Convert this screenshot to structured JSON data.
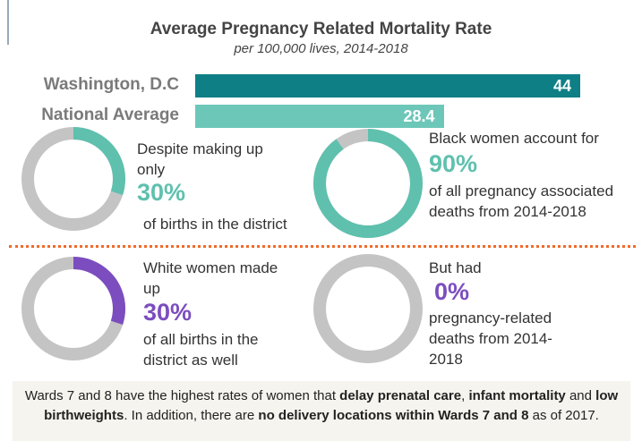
{
  "chart_data": [
    {
      "type": "bar",
      "title": "Average Pregnancy Related Mortality Rate",
      "subtitle": "per 100,000 lives, 2014-2018",
      "categories": [
        "Washington, D.C",
        "National Average"
      ],
      "values": [
        44,
        28.4
      ],
      "colors": [
        "#0f7f86",
        "#6dc7b9"
      ]
    },
    {
      "type": "donut",
      "text_before": "Despite making up only",
      "values": [
        30
      ],
      "value_labels": [
        "30%"
      ],
      "text_after": "of births in the district",
      "color": "#5fc0ae"
    },
    {
      "type": "donut",
      "text_before": "Black women account for",
      "values": [
        90
      ],
      "value_labels": [
        "90%"
      ],
      "text_after": "of all pregnancy associated deaths from 2014-2018",
      "color": "#5fc0ae"
    },
    {
      "type": "donut",
      "text_before": "White women made up",
      "values": [
        30
      ],
      "value_labels": [
        "30%"
      ],
      "text_after": "of all births in the district as well",
      "color": "#7c4dbf"
    },
    {
      "type": "donut",
      "text_before": "But had",
      "values": [
        0
      ],
      "value_labels": [
        "0%"
      ],
      "text_after": "pregnancy-related deaths from 2014-2018",
      "color": "#7c4dbf"
    }
  ],
  "footer": {
    "segments": [
      {
        "text": "Wards 7 and 8 have the highest rates of women that ",
        "bold": false
      },
      {
        "text": "delay prenatal care",
        "bold": true
      },
      {
        "text": ", ",
        "bold": false
      },
      {
        "text": "infant mortality",
        "bold": true
      },
      {
        "text": " and ",
        "bold": false
      },
      {
        "text": "low birthweights",
        "bold": true
      },
      {
        "text": ". In addition, there are ",
        "bold": false
      },
      {
        "text": "no delivery locations within Wards 7 and 8",
        "bold": true
      },
      {
        "text": " as of 2017.",
        "bold": false
      }
    ]
  }
}
